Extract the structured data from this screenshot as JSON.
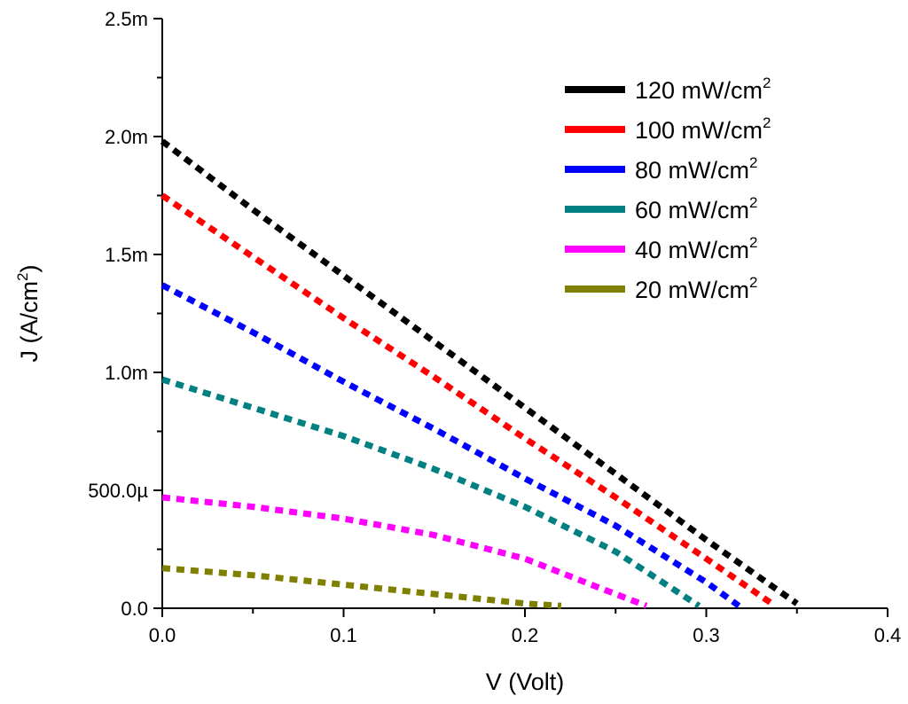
{
  "chart_data": {
    "type": "line",
    "xlabel": "V (Volt)",
    "ylabel": "J (A/cm",
    "ylabel_sup": "2",
    "ylabel_close": ")",
    "xlim": [
      0,
      0.4
    ],
    "ylim": [
      0,
      0.0025
    ],
    "x_ticks": [
      {
        "value": 0.0,
        "label": "0.0"
      },
      {
        "value": 0.1,
        "label": "0.1"
      },
      {
        "value": 0.2,
        "label": "0.2"
      },
      {
        "value": 0.3,
        "label": "0.3"
      },
      {
        "value": 0.4,
        "label": "0.4"
      }
    ],
    "y_ticks": [
      {
        "value": 0.0,
        "label": "0.0"
      },
      {
        "value": 0.0005,
        "label": "500.0µ"
      },
      {
        "value": 0.001,
        "label": "1.0m"
      },
      {
        "value": 0.0015,
        "label": "1.5m"
      },
      {
        "value": 0.002,
        "label": "2.0m"
      },
      {
        "value": 0.0025,
        "label": "2.5m"
      }
    ],
    "grid": false,
    "legend_position": "top-right",
    "line_style": "dotted",
    "series": [
      {
        "name": "120 mW/cm",
        "sup": "2",
        "color": "#000000",
        "points": [
          [
            0.0,
            0.00198
          ],
          [
            0.05,
            0.00169
          ],
          [
            0.1,
            0.00141
          ],
          [
            0.15,
            0.00113
          ],
          [
            0.2,
            0.00085
          ],
          [
            0.25,
            0.00057
          ],
          [
            0.3,
            0.00029
          ],
          [
            0.35,
            2e-05
          ]
        ]
      },
      {
        "name": "100 mW/cm",
        "sup": "2",
        "color": "#ff0000",
        "points": [
          [
            0.0,
            0.00175
          ],
          [
            0.05,
            0.00149
          ],
          [
            0.1,
            0.00123
          ],
          [
            0.15,
            0.00098
          ],
          [
            0.2,
            0.00072
          ],
          [
            0.25,
            0.00047
          ],
          [
            0.3,
            0.00021
          ],
          [
            0.338,
            1e-05
          ]
        ]
      },
      {
        "name": "80 mW/cm",
        "sup": "2",
        "color": "#0000ff",
        "points": [
          [
            0.0,
            0.00137
          ],
          [
            0.05,
            0.00117
          ],
          [
            0.1,
            0.00096
          ],
          [
            0.15,
            0.00076
          ],
          [
            0.2,
            0.00055
          ],
          [
            0.25,
            0.00035
          ],
          [
            0.3,
            0.00011
          ],
          [
            0.318,
            1e-05
          ]
        ]
      },
      {
        "name": "60 mW/cm",
        "sup": "2",
        "color": "#008080",
        "points": [
          [
            0.0,
            0.00097
          ],
          [
            0.05,
            0.00085
          ],
          [
            0.1,
            0.00073
          ],
          [
            0.15,
            0.00059
          ],
          [
            0.2,
            0.00043
          ],
          [
            0.25,
            0.00024
          ],
          [
            0.28,
            9e-05
          ],
          [
            0.296,
            1e-05
          ]
        ]
      },
      {
        "name": "40 mW/cm",
        "sup": "2",
        "color": "#ff00ff",
        "points": [
          [
            0.0,
            0.00047
          ],
          [
            0.05,
            0.00043
          ],
          [
            0.1,
            0.00038
          ],
          [
            0.15,
            0.00031
          ],
          [
            0.2,
            0.00021
          ],
          [
            0.24,
            9e-05
          ],
          [
            0.267,
            1e-05
          ]
        ]
      },
      {
        "name": "20 mW/cm",
        "sup": "2",
        "color": "#808000",
        "points": [
          [
            0.0,
            0.00017
          ],
          [
            0.05,
            0.00014
          ],
          [
            0.1,
            0.0001
          ],
          [
            0.15,
            6e-05
          ],
          [
            0.2,
            2e-05
          ],
          [
            0.22,
            1e-05
          ]
        ]
      }
    ]
  }
}
